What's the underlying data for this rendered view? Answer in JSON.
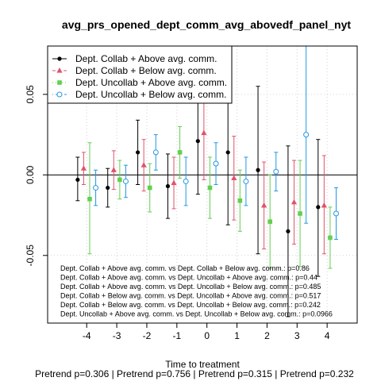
{
  "chart_data": {
    "type": "scatter",
    "title": "avg_prs_opened_dept_comm_avg_abovedf_panel_nyt",
    "xlabel": "Time to treatment",
    "subtitle": "Pretrend p=0.306 | Pretrend p=0.756 | Pretrend p=0.315 | Pretrend p=0.232",
    "x_ticks": [
      -4,
      -3,
      -2,
      -1,
      0,
      1,
      2,
      3,
      4
    ],
    "y_ticks": [
      -0.05,
      0.0,
      0.05
    ],
    "y_tick_labels": [
      "-0.05",
      "0.00",
      "0.05"
    ],
    "xlim": [
      -5.3,
      5.0
    ],
    "ylim": [
      -0.092,
      0.08
    ],
    "grid": true,
    "reference_line_y": 0,
    "legend_position": "top-left",
    "series": [
      {
        "name": "Dept. Collab + Above avg. comm.",
        "color": "#000000",
        "marker": "circle-filled",
        "line": "solid",
        "offset": -0.3,
        "points": [
          {
            "x": -4,
            "y": -0.003,
            "lo": -0.016,
            "hi": 0.011
          },
          {
            "x": -3,
            "y": -0.008,
            "lo": -0.02,
            "hi": 0.004
          },
          {
            "x": -2,
            "y": 0.014,
            "lo": -0.006,
            "hi": 0.034
          },
          {
            "x": -1,
            "y": -0.007,
            "lo": -0.027,
            "hi": 0.013
          },
          {
            "x": 0,
            "y": 0.021,
            "lo": -0.012,
            "hi": 0.054
          },
          {
            "x": 1,
            "y": 0.014,
            "lo": -0.031,
            "hi": 0.059
          },
          {
            "x": 2,
            "y": 0.003,
            "lo": -0.049,
            "hi": 0.055
          },
          {
            "x": 3,
            "y": -0.035,
            "lo": -0.088,
            "hi": 0.018
          },
          {
            "x": 4,
            "y": -0.02,
            "lo": -0.063,
            "hi": 0.022
          }
        ]
      },
      {
        "name": "Dept. Collab + Below avg. comm.",
        "color": "#DF536B",
        "marker": "triangle-filled",
        "line": "dashed",
        "offset": -0.1,
        "points": [
          {
            "x": -4,
            "y": 0.004,
            "lo": -0.006,
            "hi": 0.014
          },
          {
            "x": -3,
            "y": 0.003,
            "lo": -0.009,
            "hi": 0.015
          },
          {
            "x": -2,
            "y": 0.006,
            "lo": -0.01,
            "hi": 0.022
          },
          {
            "x": -1,
            "y": -0.005,
            "lo": -0.021,
            "hi": 0.011
          },
          {
            "x": 0,
            "y": 0.026,
            "lo": -0.003,
            "hi": 0.055
          },
          {
            "x": 1,
            "y": -0.002,
            "lo": -0.028,
            "hi": 0.024
          },
          {
            "x": 2,
            "y": -0.019,
            "lo": -0.046,
            "hi": 0.008
          },
          {
            "x": 3,
            "y": -0.017,
            "lo": -0.043,
            "hi": 0.009
          },
          {
            "x": 4,
            "y": -0.019,
            "lo": -0.049,
            "hi": 0.012
          }
        ]
      },
      {
        "name": "Dept. Uncollab + Above avg. comm.",
        "color": "#61D04F",
        "marker": "square-filled",
        "line": "dotted",
        "offset": 0.1,
        "points": [
          {
            "x": -4,
            "y": -0.015,
            "lo": -0.049,
            "hi": 0.02
          },
          {
            "x": -3,
            "y": -0.003,
            "lo": -0.015,
            "hi": 0.009
          },
          {
            "x": -2,
            "y": -0.008,
            "lo": -0.023,
            "hi": 0.007
          },
          {
            "x": -1,
            "y": 0.014,
            "lo": -0.002,
            "hi": 0.03
          },
          {
            "x": 0,
            "y": -0.008,
            "lo": -0.027,
            "hi": 0.011
          },
          {
            "x": 1,
            "y": -0.016,
            "lo": -0.035,
            "hi": 0.003
          },
          {
            "x": 2,
            "y": -0.029,
            "lo": -0.058,
            "hi": 0.0
          },
          {
            "x": 3,
            "y": -0.024,
            "lo": -0.057,
            "hi": 0.009
          },
          {
            "x": 4,
            "y": -0.039,
            "lo": -0.058,
            "hi": -0.02
          }
        ]
      },
      {
        "name": "Dept. Uncollab + Below avg. comm.",
        "color": "#2297E6",
        "marker": "circle-open",
        "line": "dashdot",
        "offset": 0.3,
        "points": [
          {
            "x": -4,
            "y": -0.008,
            "lo": -0.019,
            "hi": 0.003
          },
          {
            "x": -3,
            "y": -0.004,
            "lo": -0.014,
            "hi": 0.006
          },
          {
            "x": -2,
            "y": 0.014,
            "lo": 0.003,
            "hi": 0.025
          },
          {
            "x": -1,
            "y": -0.004,
            "lo": -0.019,
            "hi": 0.011
          },
          {
            "x": 0,
            "y": 0.007,
            "lo": -0.006,
            "hi": 0.02
          },
          {
            "x": 1,
            "y": -0.004,
            "lo": -0.019,
            "hi": 0.011
          },
          {
            "x": 2,
            "y": 0.002,
            "lo": -0.01,
            "hi": 0.014
          },
          {
            "x": 3,
            "y": 0.025,
            "lo": -0.03,
            "hi": 0.08
          },
          {
            "x": 4,
            "y": -0.024,
            "lo": -0.04,
            "hi": -0.008
          }
        ]
      }
    ],
    "annotations": [
      "Dept. Collab + Above avg. comm. vs Dept. Collab + Below avg. comm.: p=0.86",
      "Dept. Collab + Above avg. comm. vs Dept. Uncollab + Above avg. comm.: p=0.44",
      "Dept. Collab + Above avg. comm. vs Dept. Uncollab + Below avg. comm.: p=0.485",
      "Dept. Collab + Below avg. comm. vs Dept. Uncollab + Above avg. comm.: p=0.517",
      "Dept. Collab + Below avg. comm. vs Dept. Uncollab + Below avg. comm.: p=0.242",
      "Dept. Uncollab + Above avg. comm. vs Dept. Uncollab + Below avg. comm.: p=0.0966"
    ]
  }
}
